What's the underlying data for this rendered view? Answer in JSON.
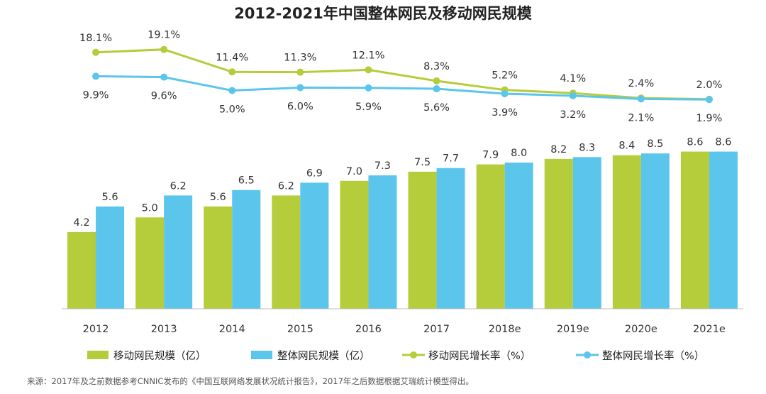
{
  "chart_data": {
    "type": "bar",
    "title": "2012-2021年中国整体网民及移动网民规模",
    "categories": [
      "2012",
      "2013",
      "2014",
      "2015",
      "2016",
      "2017",
      "2018e",
      "2019e",
      "2020e",
      "2021e"
    ],
    "bar_series": [
      {
        "name": "移动网民规模（亿）",
        "color": "#b5cc3b",
        "values": [
          4.2,
          5.0,
          5.6,
          6.2,
          7.0,
          7.5,
          7.9,
          8.2,
          8.4,
          8.6
        ]
      },
      {
        "name": "整体网民规模（亿）",
        "color": "#5bc5ec",
        "values": [
          5.6,
          6.2,
          6.5,
          6.9,
          7.3,
          7.7,
          8.0,
          8.3,
          8.5,
          8.6
        ]
      }
    ],
    "line_series": [
      {
        "name": "移动网民增长率（%）",
        "color": "#b5cc3b",
        "values": [
          18.1,
          19.1,
          11.4,
          11.3,
          12.1,
          8.3,
          5.2,
          4.1,
          2.4,
          2.0
        ],
        "labels": [
          "18.1%",
          "19.1%",
          "11.4%",
          "11.3%",
          "12.1%",
          "8.3%",
          "5.2%",
          "4.1%",
          "2.4%",
          "2.0%"
        ]
      },
      {
        "name": "整体网民增长率（%）",
        "color": "#5bc5ec",
        "values": [
          9.9,
          9.6,
          5.0,
          6.0,
          5.9,
          5.6,
          3.9,
          3.2,
          2.1,
          1.9
        ],
        "labels": [
          "9.9%",
          "9.6%",
          "5.0%",
          "6.0%",
          "5.9%",
          "5.6%",
          "3.9%",
          "3.2%",
          "2.1%",
          "1.9%"
        ]
      }
    ],
    "legend_position": "bottom",
    "grid": false
  },
  "source_note": "来源：2017年及之前数据参考CNNIC发布的《中国互联网络发展状况统计报告》，2017年之后数据根据艾瑞统计模型得出。"
}
